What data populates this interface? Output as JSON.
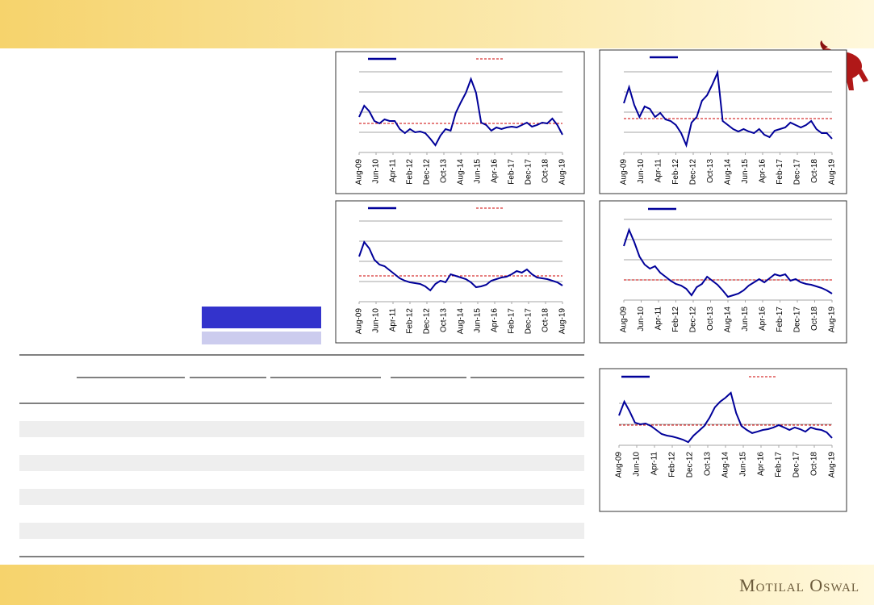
{
  "footer": {
    "brand": "Motilal Oswal"
  },
  "chart_data": [
    {
      "type": "line",
      "xlim": [
        0,
        120
      ],
      "ylim": [
        0,
        4
      ],
      "yticks": [
        0,
        1,
        2,
        3,
        4
      ],
      "grid": true,
      "xticks": [
        {
          "value": 0,
          "label": "Aug-09"
        },
        {
          "value": 10,
          "label": "Jun-10"
        },
        {
          "value": 20,
          "label": "Apr-11"
        },
        {
          "value": 30,
          "label": "Feb-12"
        },
        {
          "value": 40,
          "label": "Dec-12"
        },
        {
          "value": 50,
          "label": "Oct-13"
        },
        {
          "value": 60,
          "label": "Aug-14"
        },
        {
          "value": 70,
          "label": "Jun-15"
        },
        {
          "value": 80,
          "label": "Apr-16"
        },
        {
          "value": 90,
          "label": "Feb-17"
        },
        {
          "value": 100,
          "label": "Dec-17"
        },
        {
          "value": 110,
          "label": "Oct-18"
        },
        {
          "value": 120,
          "label": "Aug-19"
        }
      ],
      "x": [
        0,
        3,
        6,
        9,
        12,
        15,
        18,
        21,
        24,
        27,
        30,
        33,
        36,
        39,
        42,
        45,
        48,
        51,
        54,
        57,
        60,
        63,
        66,
        69,
        72,
        75,
        78,
        81,
        84,
        87,
        90,
        93,
        96,
        99,
        102,
        105,
        108,
        111,
        114,
        117,
        120
      ],
      "series": [
        {
          "color": "#000099",
          "values": [
            1.76,
            2.32,
            2.04,
            1.56,
            1.44,
            1.64,
            1.56,
            1.56,
            1.16,
            0.96,
            1.16,
            1.0,
            1.04,
            0.96,
            0.68,
            0.36,
            0.84,
            1.16,
            1.08,
            1.96,
            2.48,
            2.96,
            3.64,
            2.96,
            1.48,
            1.36,
            1.08,
            1.24,
            1.16,
            1.24,
            1.28,
            1.24,
            1.36,
            1.48,
            1.28,
            1.36,
            1.48,
            1.44,
            1.68,
            1.36,
            0.88
          ]
        }
      ],
      "reference_line": {
        "value": 1.44,
        "color": "#cc0000"
      }
    },
    {
      "type": "line",
      "xlim": [
        0,
        120
      ],
      "ylim": [
        0,
        4
      ],
      "yticks": [
        0,
        1,
        2,
        3,
        4
      ],
      "grid": true,
      "xticks": [
        {
          "value": 0,
          "label": "Aug-09"
        },
        {
          "value": 10,
          "label": "Jun-10"
        },
        {
          "value": 20,
          "label": "Apr-11"
        },
        {
          "value": 30,
          "label": "Feb-12"
        },
        {
          "value": 40,
          "label": "Dec-12"
        },
        {
          "value": 50,
          "label": "Oct-13"
        },
        {
          "value": 60,
          "label": "Aug-14"
        },
        {
          "value": 70,
          "label": "Jun-15"
        },
        {
          "value": 80,
          "label": "Apr-16"
        },
        {
          "value": 90,
          "label": "Feb-17"
        },
        {
          "value": 100,
          "label": "Dec-17"
        },
        {
          "value": 110,
          "label": "Oct-18"
        },
        {
          "value": 120,
          "label": "Aug-19"
        }
      ],
      "x": [
        0,
        3,
        6,
        9,
        12,
        15,
        18,
        21,
        24,
        27,
        30,
        33,
        36,
        39,
        42,
        45,
        48,
        51,
        54,
        57,
        60,
        63,
        66,
        69,
        72,
        75,
        78,
        81,
        84,
        87,
        90,
        93,
        96,
        99,
        102,
        105,
        108,
        111,
        114,
        117,
        120
      ],
      "series": [
        {
          "color": "#000099",
          "values": [
            2.44,
            3.24,
            2.36,
            1.76,
            2.28,
            2.16,
            1.76,
            1.96,
            1.64,
            1.56,
            1.36,
            0.96,
            0.36,
            1.48,
            1.76,
            2.56,
            2.84,
            3.36,
            3.96,
            1.56,
            1.36,
            1.16,
            1.04,
            1.16,
            1.04,
            0.96,
            1.16,
            0.88,
            0.76,
            1.08,
            1.16,
            1.24,
            1.48,
            1.36,
            1.24,
            1.36,
            1.56,
            1.16,
            0.96,
            0.96,
            0.68
          ]
        }
      ],
      "reference_line": {
        "value": 1.68,
        "color": "#cc0000"
      }
    },
    {
      "type": "line",
      "xlim": [
        0,
        120
      ],
      "ylim": [
        0,
        4
      ],
      "yticks": [
        0,
        1,
        2,
        3,
        4
      ],
      "grid": true,
      "xticks": [
        {
          "value": 0,
          "label": "Aug-09"
        },
        {
          "value": 10,
          "label": "Jun-10"
        },
        {
          "value": 20,
          "label": "Apr-11"
        },
        {
          "value": 30,
          "label": "Feb-12"
        },
        {
          "value": 40,
          "label": "Dec-12"
        },
        {
          "value": 50,
          "label": "Oct-13"
        },
        {
          "value": 60,
          "label": "Aug-14"
        },
        {
          "value": 70,
          "label": "Jun-15"
        },
        {
          "value": 80,
          "label": "Apr-16"
        },
        {
          "value": 90,
          "label": "Feb-17"
        },
        {
          "value": 100,
          "label": "Dec-17"
        },
        {
          "value": 110,
          "label": "Oct-18"
        },
        {
          "value": 120,
          "label": "Aug-19"
        }
      ],
      "x": [
        0,
        3,
        6,
        9,
        12,
        15,
        18,
        21,
        24,
        27,
        30,
        33,
        36,
        39,
        42,
        45,
        48,
        51,
        54,
        57,
        60,
        63,
        66,
        69,
        72,
        75,
        78,
        81,
        84,
        87,
        90,
        93,
        96,
        99,
        102,
        105,
        108,
        111,
        114,
        117,
        120
      ],
      "series": [
        {
          "color": "#000099",
          "values": [
            2.24,
            2.96,
            2.64,
            2.08,
            1.84,
            1.76,
            1.56,
            1.36,
            1.16,
            1.04,
            0.96,
            0.92,
            0.88,
            0.76,
            0.56,
            0.88,
            1.04,
            0.96,
            1.36,
            1.28,
            1.2,
            1.12,
            0.96,
            0.72,
            0.76,
            0.84,
            1.04,
            1.12,
            1.2,
            1.24,
            1.36,
            1.52,
            1.44,
            1.6,
            1.36,
            1.2,
            1.16,
            1.12,
            1.04,
            0.96,
            0.8
          ]
        }
      ],
      "reference_line": {
        "value": 1.28,
        "color": "#cc0000"
      }
    },
    {
      "type": "line",
      "xlim": [
        0,
        120
      ],
      "ylim": [
        0,
        4
      ],
      "yticks": [
        0,
        1,
        2,
        3,
        4
      ],
      "grid": true,
      "xticks": [
        {
          "value": 0,
          "label": "Aug-09"
        },
        {
          "value": 10,
          "label": "Jun-10"
        },
        {
          "value": 20,
          "label": "Apr-11"
        },
        {
          "value": 30,
          "label": "Feb-12"
        },
        {
          "value": 40,
          "label": "Dec-12"
        },
        {
          "value": 50,
          "label": "Oct-13"
        },
        {
          "value": 60,
          "label": "Aug-14"
        },
        {
          "value": 70,
          "label": "Jun-15"
        },
        {
          "value": 80,
          "label": "Apr-16"
        },
        {
          "value": 90,
          "label": "Feb-17"
        },
        {
          "value": 100,
          "label": "Dec-17"
        },
        {
          "value": 110,
          "label": "Oct-18"
        },
        {
          "value": 120,
          "label": "Aug-19"
        }
      ],
      "x": [
        0,
        3,
        6,
        9,
        12,
        15,
        18,
        21,
        24,
        27,
        30,
        33,
        36,
        39,
        42,
        45,
        48,
        51,
        54,
        57,
        60,
        63,
        66,
        69,
        72,
        75,
        78,
        81,
        84,
        87,
        90,
        93,
        96,
        99,
        102,
        105,
        108,
        111,
        114,
        117,
        120
      ],
      "series": [
        {
          "color": "#000099",
          "values": [
            2.68,
            3.48,
            2.88,
            2.16,
            1.76,
            1.56,
            1.68,
            1.36,
            1.16,
            0.96,
            0.8,
            0.72,
            0.56,
            0.24,
            0.64,
            0.8,
            1.16,
            0.96,
            0.76,
            0.48,
            0.16,
            0.24,
            0.32,
            0.48,
            0.72,
            0.88,
            1.04,
            0.88,
            1.08,
            1.28,
            1.2,
            1.28,
            0.96,
            1.04,
            0.88,
            0.8,
            0.76,
            0.68,
            0.6,
            0.48,
            0.32
          ]
        }
      ],
      "reference_line": {
        "value": 1.0,
        "color": "#cc0000"
      }
    },
    {
      "type": "line",
      "xlim": [
        0,
        120
      ],
      "ylim": [
        0,
        3
      ],
      "yticks": [
        0,
        1,
        2
      ],
      "grid": true,
      "xticks": [
        {
          "value": 0,
          "label": "Aug-09"
        },
        {
          "value": 10,
          "label": "Jun-10"
        },
        {
          "value": 20,
          "label": "Apr-11"
        },
        {
          "value": 30,
          "label": "Feb-12"
        },
        {
          "value": 40,
          "label": "Dec-12"
        },
        {
          "value": 50,
          "label": "Oct-13"
        },
        {
          "value": 60,
          "label": "Aug-14"
        },
        {
          "value": 70,
          "label": "Jun-15"
        },
        {
          "value": 80,
          "label": "Apr-16"
        },
        {
          "value": 90,
          "label": "Feb-17"
        },
        {
          "value": 100,
          "label": "Dec-17"
        },
        {
          "value": 110,
          "label": "Oct-18"
        },
        {
          "value": 120,
          "label": "Aug-19"
        }
      ],
      "x": [
        0,
        3,
        6,
        9,
        12,
        15,
        18,
        21,
        24,
        27,
        30,
        33,
        36,
        39,
        42,
        45,
        48,
        51,
        54,
        57,
        60,
        63,
        66,
        69,
        72,
        75,
        78,
        81,
        84,
        87,
        90,
        93,
        96,
        99,
        102,
        105,
        108,
        111,
        114,
        117,
        120
      ],
      "series": [
        {
          "color": "#000099",
          "values": [
            1.42,
            2.08,
            1.62,
            1.08,
            1.0,
            1.04,
            0.92,
            0.73,
            0.54,
            0.46,
            0.42,
            0.35,
            0.27,
            0.15,
            0.46,
            0.69,
            0.92,
            1.31,
            1.81,
            2.08,
            2.27,
            2.5,
            1.54,
            0.92,
            0.73,
            0.58,
            0.65,
            0.73,
            0.77,
            0.85,
            0.96,
            0.85,
            0.73,
            0.85,
            0.77,
            0.65,
            0.85,
            0.77,
            0.73,
            0.62,
            0.35
          ]
        }
      ],
      "reference_line": {
        "value": 0.96,
        "color": "#cc0000"
      }
    }
  ]
}
